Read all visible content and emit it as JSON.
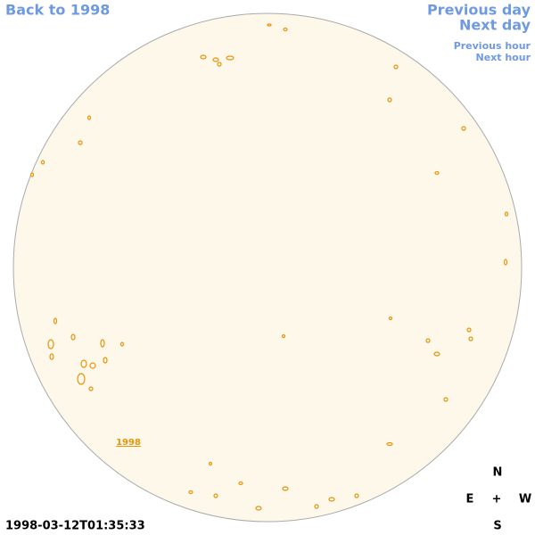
{
  "nav": {
    "back": "Back to 1998",
    "previous_day": "Previous day",
    "next_day": "Next day",
    "previous_hour": "Previous hour",
    "next_hour": "Next hour"
  },
  "disk_label": "1998",
  "timestamp": "1998-03-12T01:35:33",
  "compass": {
    "north": "N",
    "east": "E",
    "center": "+",
    "west": "W",
    "south": "S"
  }
}
